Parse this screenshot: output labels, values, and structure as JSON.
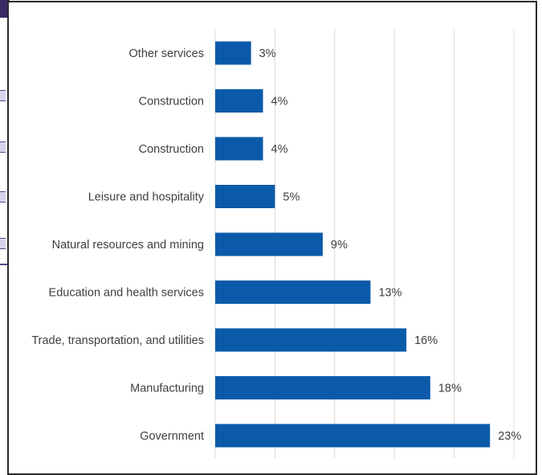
{
  "chart_data": {
    "type": "bar",
    "orientation": "horizontal",
    "categories": [
      "Other services",
      "Construction",
      "Construction",
      "Leisure and hospitality",
      "Natural resources and mining",
      "Education and health services",
      "Trade, transportation, and utilities",
      "Manufacturing",
      "Government"
    ],
    "values": [
      3,
      4,
      4,
      5,
      9,
      13,
      16,
      18,
      23
    ],
    "value_labels": [
      "3%",
      "4%",
      "4%",
      "5%",
      "9%",
      "13%",
      "16%",
      "18%",
      "23%"
    ],
    "unit": "%",
    "xlim": [
      0,
      25
    ],
    "grid": true,
    "legend": "none",
    "title": "",
    "xlabel": "",
    "ylabel": "",
    "bar_color": "#0b5aa9",
    "grid_color": "#d9d9d9",
    "text_color": "#3f3f3f"
  }
}
